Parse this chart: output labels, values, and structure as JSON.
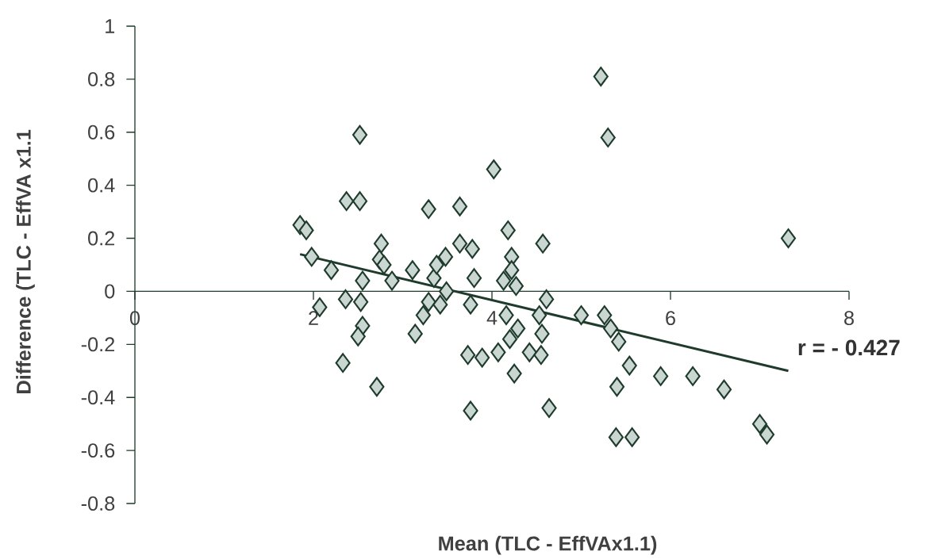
{
  "chart_data": {
    "type": "scatter",
    "xlabel": "Mean (TLC - EffVAx1.1)",
    "ylabel": "Difference (TLC - EffVA x1.1",
    "xlim": [
      0,
      8
    ],
    "xticks": [
      0,
      2,
      4,
      6,
      8
    ],
    "ylim": [
      -0.8,
      1
    ],
    "yticks": [
      -0.8,
      -0.6,
      -0.4,
      -0.2,
      0,
      0.2,
      0.4,
      0.6,
      0.8,
      1
    ],
    "annotations": [
      {
        "text": "r = - 0.427",
        "x": 7.32,
        "y": -0.3
      }
    ],
    "series": [
      {
        "marker": "diamond",
        "color": "#c9d6d2",
        "x": [
          1.85,
          1.92,
          2.37,
          2.52,
          2.52,
          1.98,
          2.2,
          2.55,
          2.76,
          2.74,
          2.79,
          2.88,
          3.11,
          3.29,
          3.64,
          4.02,
          4.18,
          3.35,
          3.38,
          3.48,
          3.64,
          3.78,
          3.8,
          4.13,
          4.22,
          4.22,
          2.07,
          2.36,
          2.53,
          3.29,
          3.42,
          3.49,
          3.23,
          3.76,
          4.16,
          2.55,
          2.5,
          2.33,
          2.71,
          3.14,
          3.73,
          3.89,
          4.07,
          3.76,
          4.2,
          4.25,
          5.22,
          5.3,
          4.57,
          4.27,
          7.32,
          4.61,
          4.53,
          5.0,
          5.26,
          5.33,
          5.42,
          4.29,
          4.56,
          4.42,
          4.55,
          4.64,
          5.54,
          5.4,
          5.89,
          6.25,
          6.6,
          7.0,
          7.08,
          5.39,
          5.57
        ],
        "values": [
          0.25,
          0.23,
          0.34,
          0.34,
          0.59,
          0.13,
          0.08,
          0.04,
          0.18,
          0.12,
          0.1,
          0.04,
          0.08,
          0.31,
          0.32,
          0.46,
          0.23,
          0.05,
          0.1,
          0.13,
          0.18,
          0.16,
          0.05,
          0.04,
          0.13,
          0.08,
          -0.06,
          -0.03,
          -0.04,
          -0.04,
          -0.05,
          0.0,
          -0.09,
          -0.05,
          -0.09,
          -0.13,
          -0.17,
          -0.27,
          -0.36,
          -0.16,
          -0.24,
          -0.25,
          -0.23,
          -0.45,
          -0.18,
          -0.31,
          0.81,
          0.58,
          0.18,
          0.02,
          0.2,
          -0.03,
          -0.09,
          -0.09,
          -0.09,
          -0.14,
          -0.19,
          -0.14,
          -0.16,
          -0.23,
          -0.24,
          -0.44,
          -0.28,
          -0.36,
          -0.32,
          -0.32,
          -0.37,
          -0.5,
          -0.54,
          -0.55,
          -0.55
        ]
      },
      {
        "type": "line",
        "color": "#1e3b2c",
        "x": [
          1.85,
          7.32
        ],
        "values": [
          0.14,
          -0.3
        ]
      }
    ]
  }
}
